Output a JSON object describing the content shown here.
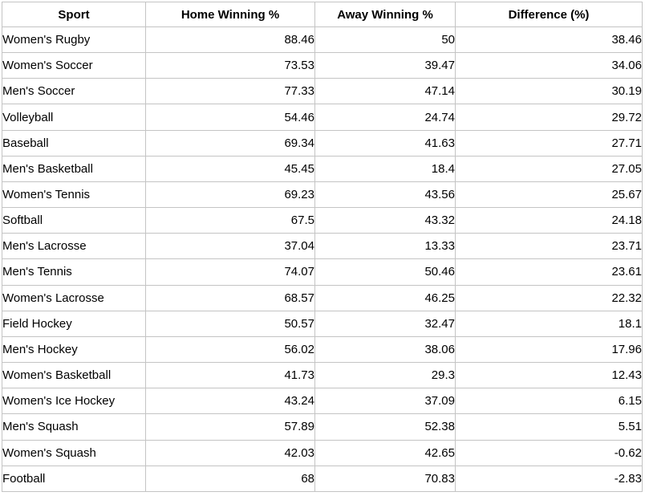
{
  "chart_data": {
    "type": "table",
    "columns": [
      "Sport",
      "Home Winning %",
      "Away Winning %",
      "Difference (%)"
    ],
    "column_align": [
      "left",
      "right",
      "right",
      "right"
    ],
    "rows": [
      [
        "Women's Rugby",
        "88.46",
        "50",
        "38.46"
      ],
      [
        "Women's Soccer",
        "73.53",
        "39.47",
        "34.06"
      ],
      [
        "Men's Soccer",
        "77.33",
        "47.14",
        "30.19"
      ],
      [
        "Volleyball",
        "54.46",
        "24.74",
        "29.72"
      ],
      [
        "Baseball",
        "69.34",
        "41.63",
        "27.71"
      ],
      [
        "Men's Basketball",
        "45.45",
        "18.4",
        "27.05"
      ],
      [
        "Women's Tennis",
        "69.23",
        "43.56",
        "25.67"
      ],
      [
        "Softball",
        "67.5",
        "43.32",
        "24.18"
      ],
      [
        "Men's Lacrosse",
        "37.04",
        "13.33",
        "23.71"
      ],
      [
        "Men's Tennis",
        "74.07",
        "50.46",
        "23.61"
      ],
      [
        "Women's Lacrosse",
        "68.57",
        "46.25",
        "22.32"
      ],
      [
        "Field Hockey",
        "50.57",
        "32.47",
        "18.1"
      ],
      [
        "Men's Hockey",
        "56.02",
        "38.06",
        "17.96"
      ],
      [
        "Women's Basketball",
        "41.73",
        "29.3",
        "12.43"
      ],
      [
        "Women's Ice Hockey",
        "43.24",
        "37.09",
        "6.15"
      ],
      [
        "Men's Squash",
        "57.89",
        "52.38",
        "5.51"
      ],
      [
        "Women's Squash",
        "42.03",
        "42.65",
        "-0.62"
      ],
      [
        "Football",
        "68",
        "70.83",
        "-2.83"
      ]
    ]
  },
  "colors": {
    "border": "#c4c4c4",
    "text": "#000000",
    "background": "#ffffff"
  }
}
